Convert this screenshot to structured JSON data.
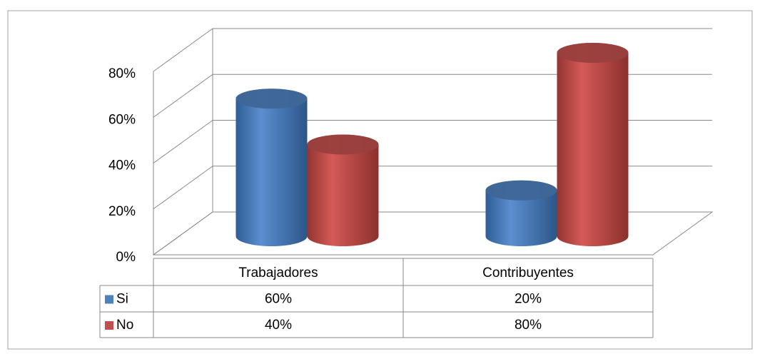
{
  "chart_data": {
    "type": "bar3d",
    "categories": [
      "Trabajadores",
      "Contribuyentes"
    ],
    "series": [
      {
        "name": "Si",
        "color": "#4f81bd",
        "values": [
          60,
          20
        ],
        "value_labels": [
          "60%",
          "20%"
        ]
      },
      {
        "name": "No",
        "color": "#c0504d",
        "values": [
          40,
          80
        ],
        "value_labels": [
          "40%",
          "80%"
        ]
      }
    ],
    "ylim": [
      0,
      80
    ],
    "yticks": [
      {
        "value": 0,
        "label": "0%"
      },
      {
        "value": 20,
        "label": "20%"
      },
      {
        "value": 40,
        "label": "40%"
      },
      {
        "value": 60,
        "label": "60%"
      },
      {
        "value": 80,
        "label": "80%"
      }
    ],
    "grid": true,
    "legend": "table"
  }
}
